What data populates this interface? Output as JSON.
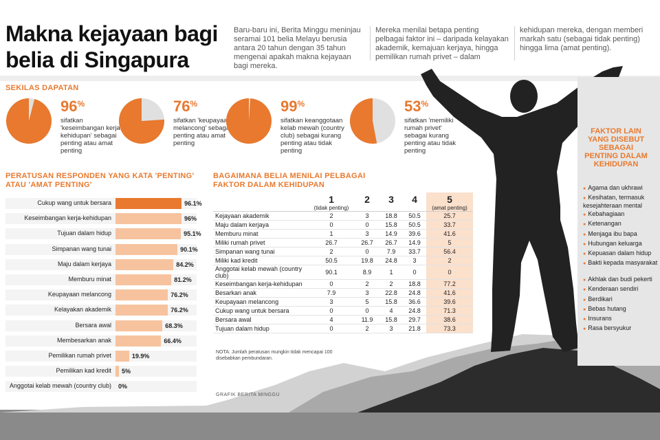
{
  "title": "Makna kejayaan bagi belia di Singapura",
  "intro": [
    "Baru-baru ini, Berita Minggu meninjau seramai 101 belia Melayu berusia antara 20 tahun dengan 35 tahun mengenai apakah makna kejayaan bagi mereka.",
    "Mereka menilai betapa penting pelbagai faktor ini – daripada kelayakan akademik, kemajuan kerjaya, hingga pemilikan rumah privet – dalam",
    "kehidupan mereka, dengan memberi markah satu (sebagai tidak penting) hingga lima (amat penting)."
  ],
  "highlights": {
    "heading": "SEKILAS DAPATAN",
    "items": [
      {
        "pct": "96",
        "caption": "sifatkan 'keseimbangan kerja-kehidupan' sebagai penting atau amat penting",
        "value": 96
      },
      {
        "pct": "76",
        "caption": "sifatkan 'keupayaan melancong' sebagai penting atau amat penting",
        "value": 76
      },
      {
        "pct": "99",
        "caption": "sifatkan keanggotaan kelab mewah (country club) sebagai kurang penting atau tidak penting",
        "value": 99
      },
      {
        "pct": "53",
        "caption": "sifatkan 'memiliki rumah privet' sebagai kurang penting atau tidak penting",
        "value": 53
      }
    ],
    "pct_sign": "%"
  },
  "colors": {
    "accent": "#e8792e",
    "accent_light": "#f6c39e",
    "pie_rest": "#e0e0e0"
  },
  "chart_data": [
    {
      "type": "bar",
      "title": "PERATUSAN RESPONDEN YANG KATA 'PENTING' ATAU 'AMAT PENTING'",
      "orientation": "horizontal",
      "categories": [
        "Cukup wang untuk bersara",
        "Keseimbangan kerja-kehidupan",
        "Tujuan dalam hidup",
        "Simpanan wang tunai",
        "Maju dalam kerjaya",
        "Memburu minat",
        "Keupayaan melancong",
        "Kelayakan akademik",
        "Bersara awal",
        "Membesarkan anak",
        "Pemilikan rumah privet",
        "Pemilikan kad kredit",
        "Anggotai kelab mewah (country club)"
      ],
      "values": [
        96.1,
        96,
        95.1,
        90.1,
        84.2,
        81.2,
        76.2,
        76.2,
        68.3,
        66.4,
        19.9,
        5,
        0
      ],
      "value_labels": [
        "96.1%",
        "96%",
        "95.1%",
        "90.1%",
        "84.2%",
        "81.2%",
        "76.2%",
        "76.2%",
        "68.3%",
        "66.4%",
        "19.9%",
        "5%",
        "0%"
      ],
      "xlim": [
        0,
        100
      ]
    },
    {
      "type": "table",
      "title": "BAGAIMANA BELIA MENILAI PELBAGAI FAKTOR DALAM KEHIDUPAN",
      "columns": [
        {
          "num": "1",
          "sub": "(tidak penting)"
        },
        {
          "num": "2",
          "sub": ""
        },
        {
          "num": "3",
          "sub": ""
        },
        {
          "num": "4",
          "sub": ""
        },
        {
          "num": "5",
          "sub": "(amat penting)"
        }
      ],
      "rows": [
        {
          "label": "Kejayaan akademik",
          "values": [
            "2",
            "3",
            "18.8",
            "50.5",
            "25.7"
          ]
        },
        {
          "label": "Maju dalam kerjaya",
          "values": [
            "0",
            "0",
            "15.8",
            "50.5",
            "33.7"
          ]
        },
        {
          "label": "Memburu minat",
          "values": [
            "1",
            "3",
            "14.9",
            "39.6",
            "41.6"
          ]
        },
        {
          "label": "Miliki rumah privet",
          "values": [
            "26.7",
            "26.7",
            "26.7",
            "14.9",
            "5"
          ]
        },
        {
          "label": "Simpanan wang tunai",
          "values": [
            "2",
            "0",
            "7.9",
            "33.7",
            "56.4"
          ]
        },
        {
          "label": "Miliki kad kredit",
          "values": [
            "50.5",
            "19.8",
            "24.8",
            "3",
            "2"
          ]
        },
        {
          "label": "Anggotai kelab mewah (country club)",
          "values": [
            "90.1",
            "8.9",
            "1",
            "0",
            "0"
          ]
        },
        {
          "label": "Keseimbangan kerja-kehidupan",
          "values": [
            "0",
            "2",
            "2",
            "18.8",
            "77.2"
          ]
        },
        {
          "label": "Besarkan anak",
          "values": [
            "7.9",
            "3",
            "22.8",
            "24.8",
            "41.6"
          ]
        },
        {
          "label": "Keupayaan melancong",
          "values": [
            "3",
            "5",
            "15.8",
            "36.6",
            "39.6"
          ]
        },
        {
          "label": "Cukup wang untuk bersara",
          "values": [
            "0",
            "0",
            "4",
            "24.8",
            "71.3"
          ]
        },
        {
          "label": "Bersara awal",
          "values": [
            "4",
            "11.9",
            "15.8",
            "29.7",
            "38.6"
          ]
        },
        {
          "label": "Tujuan dalam hidup",
          "values": [
            "0",
            "2",
            "3",
            "21.8",
            "73.3"
          ]
        }
      ]
    }
  ],
  "bar_heading": [
    "PERATUSAN RESPONDEN YANG KATA 'PENTING'",
    "ATAU 'AMAT PENTING'"
  ],
  "table_heading": [
    "BAGAIMANA BELIA MENILAI PELBAGAI",
    "FAKTOR DALAM KEHIDUPAN"
  ],
  "note": "NOTA: Jumlah peratusan mungkin tidak mencapai 100 disebabkan pembundaran.",
  "credit": "GRAFIK BERITA MINGGU",
  "right_panel": {
    "heading": "FAKTOR LAIN YANG DISEBUT SEBAGAI PENTING DALAM KEHIDUPAN",
    "items": [
      "Agama dan ukhrawi",
      "Kesihatan, termasuk kesejahteraan mental",
      "Kebahagiaan",
      "Ketenangan",
      "Menjaga ibu bapa",
      "Hubungan keluarga",
      "Kepuasan dalam hidup",
      "Bakti kepada masyarakat",
      "Akhlak dan budi pekerti",
      "Kenderaan sendiri",
      "Berdikari",
      "Bebas hutang",
      "Insurans",
      "Rasa bersyukur"
    ]
  }
}
